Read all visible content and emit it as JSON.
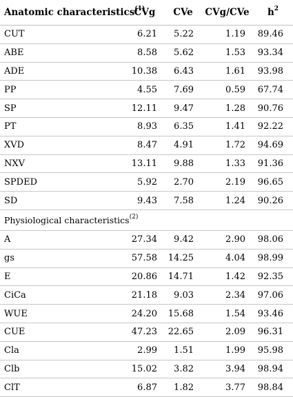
{
  "header": {
    "row_label": "Anatomic characteristics",
    "row_label_sup": "(1)",
    "cvg": "CVg",
    "cve": "CVe",
    "ratio": "CVg/CVe",
    "h": "h",
    "h_sup": "2"
  },
  "anatomic_rows": [
    {
      "label": "CUT",
      "cvg": "6.21",
      "cve": "5.22",
      "ratio": "1.19",
      "h2": "89.46"
    },
    {
      "label": "ABE",
      "cvg": "8.58",
      "cve": "5.62",
      "ratio": "1.53",
      "h2": "93.34"
    },
    {
      "label": "ADE",
      "cvg": "10.38",
      "cve": "6.43",
      "ratio": "1.61",
      "h2": "93.98"
    },
    {
      "label": "PP",
      "cvg": "4.55",
      "cve": "7.69",
      "ratio": "0.59",
      "h2": "67.74"
    },
    {
      "label": "SP",
      "cvg": "12.11",
      "cve": "9.47",
      "ratio": "1.28",
      "h2": "90.76"
    },
    {
      "label": "PT",
      "cvg": "8.93",
      "cve": "6.35",
      "ratio": "1.41",
      "h2": "92.22"
    },
    {
      "label": "XVD",
      "cvg": "8.47",
      "cve": "4.91",
      "ratio": "1.72",
      "h2": "94.69"
    },
    {
      "label": "NXV",
      "cvg": "13.11",
      "cve": "9.88",
      "ratio": "1.33",
      "h2": "91.36"
    },
    {
      "label": "SPDED",
      "cvg": "5.92",
      "cve": "2.70",
      "ratio": "2.19",
      "h2": "96.65"
    },
    {
      "label": "SD",
      "cvg": "9.43",
      "cve": "7.58",
      "ratio": "1.24",
      "h2": "90.26"
    }
  ],
  "physiological_section": {
    "label": "Physiological characteristics",
    "sup": "(2)"
  },
  "physiological_rows": [
    {
      "label": "A",
      "cvg": "27.34",
      "cve": "9.42",
      "ratio": "2.90",
      "h2": "98.06"
    },
    {
      "label": "gs",
      "cvg": "57.58",
      "cve": "14.25",
      "ratio": "4.04",
      "h2": "98.99"
    },
    {
      "label": "E",
      "cvg": "20.86",
      "cve": "14.71",
      "ratio": "1.42",
      "h2": "92.35"
    },
    {
      "label": "CiCa",
      "cvg": "21.18",
      "cve": "9.03",
      "ratio": "2.34",
      "h2": "97.06"
    },
    {
      "label": "WUE",
      "cvg": "24.20",
      "cve": "15.68",
      "ratio": "1.54",
      "h2": "93.46"
    },
    {
      "label": "CUE",
      "cvg": "47.23",
      "cve": "22.65",
      "ratio": "2.09",
      "h2": "96.31"
    },
    {
      "label": "Cla",
      "cvg": "2.99",
      "cve": "1.51",
      "ratio": "1.99",
      "h2": "95.98"
    },
    {
      "label": "Clb",
      "cvg": "15.02",
      "cve": "3.82",
      "ratio": "3.94",
      "h2": "98.94"
    },
    {
      "label": "ClT",
      "cvg": "6.87",
      "cve": "1.82",
      "ratio": "3.77",
      "h2": "98.84"
    }
  ]
}
